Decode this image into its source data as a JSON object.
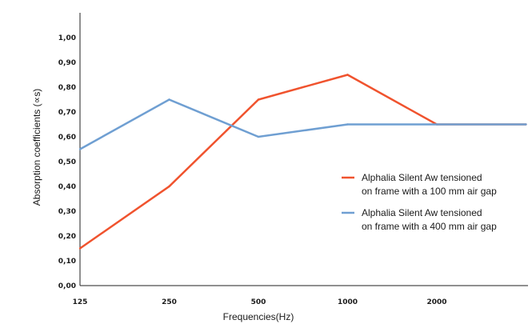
{
  "chart_data": {
    "type": "line",
    "xlabel": "Frequencies(Hz)",
    "ylabel": "Absorption coefficients (∝s)",
    "categories": [
      "125",
      "250",
      "500",
      "1000",
      "2000",
      ""
    ],
    "yticks": [
      "0,00",
      "0,10",
      "0,20",
      "0,30",
      "0,40",
      "0,50",
      "0,60",
      "0,70",
      "0,80",
      "0,90",
      "1,00"
    ],
    "ylim": [
      0,
      1.1
    ],
    "grid": false,
    "legend_position": "right",
    "series": [
      {
        "name_line1": "Alphalia Silent Aw tensioned",
        "name_line2": "on frame with a 100 mm air gap",
        "color": "#f0532e",
        "values": [
          0.15,
          0.4,
          0.75,
          0.85,
          0.65,
          0.65
        ]
      },
      {
        "name_line1": "Alphalia Silent Aw tensioned",
        "name_line2": "on frame with a 400 mm air gap",
        "color": "#6f9fd2",
        "values": [
          0.55,
          0.75,
          0.6,
          0.65,
          0.65,
          0.65
        ]
      }
    ]
  }
}
